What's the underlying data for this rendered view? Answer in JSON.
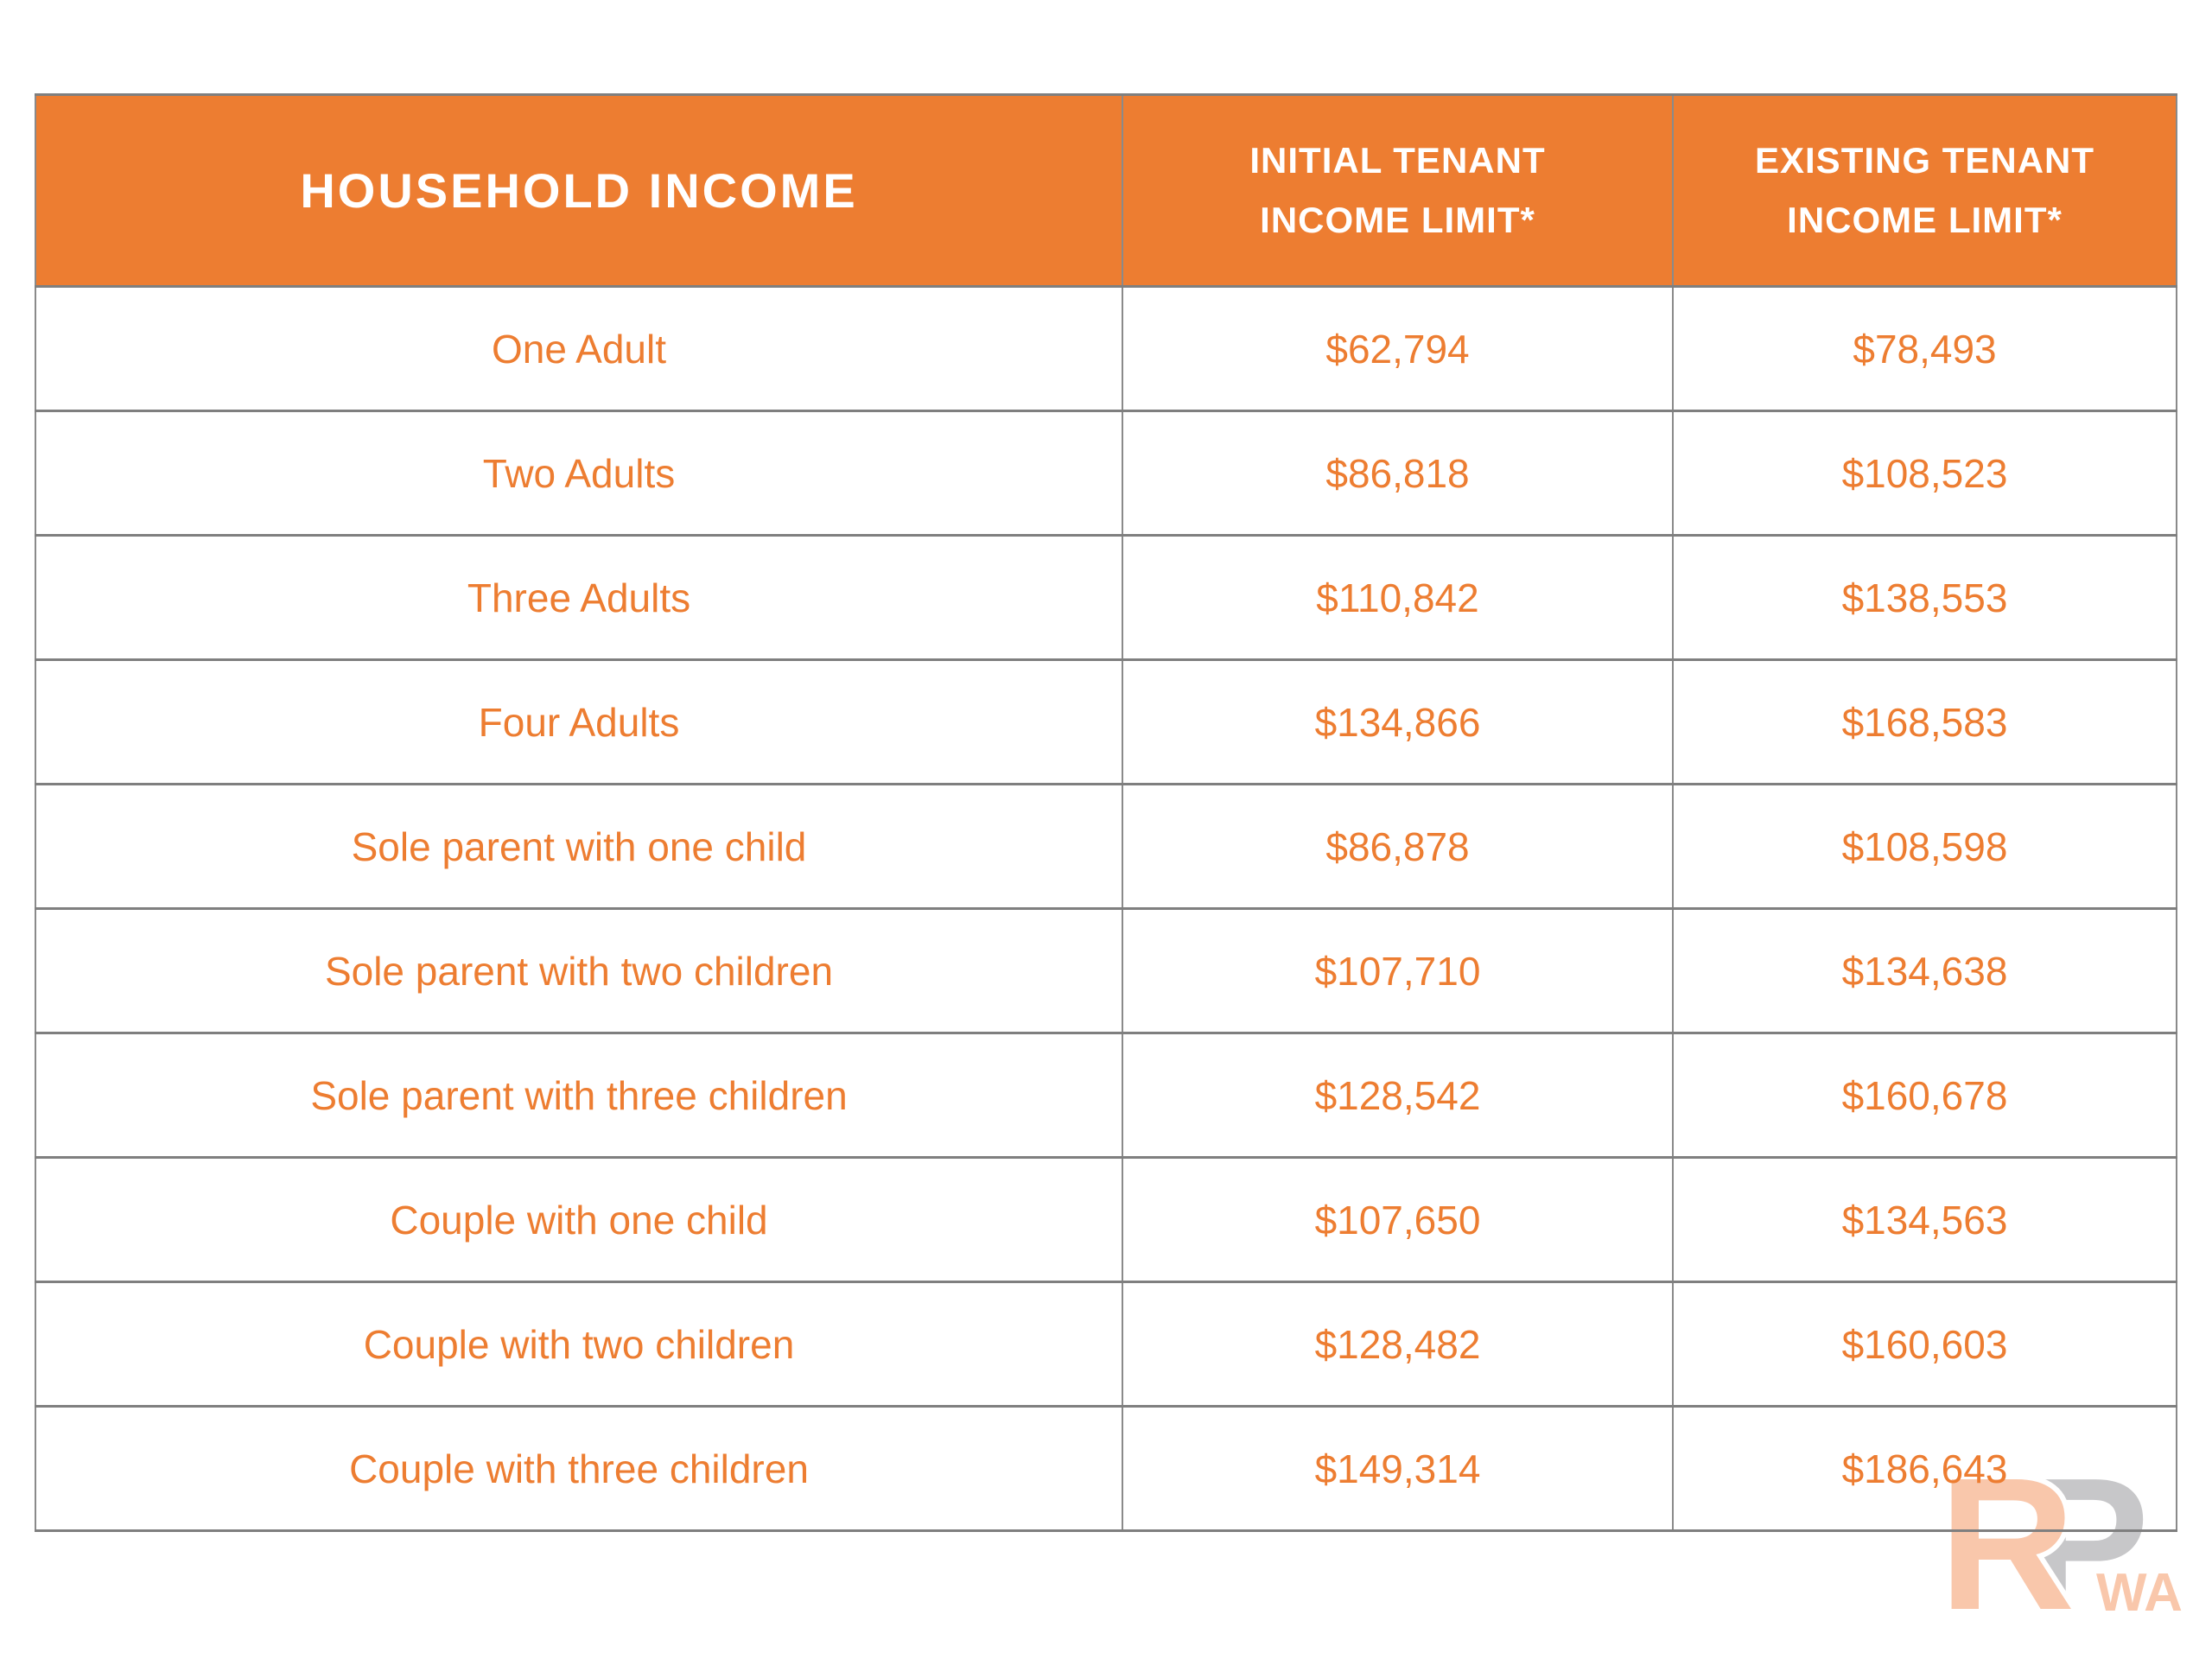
{
  "page": {
    "background": "#ffffff"
  },
  "colors": {
    "accent_orange": "#ED7D31",
    "header_text": "#FFFFFF",
    "border_gray": "#8A8A8A",
    "watermark_peach": "#F9C7AB",
    "watermark_gray": "#C7C7C9"
  },
  "table": {
    "header": {
      "household": "HOUSEHOLD INCOME",
      "initial_line1": "INITIAL TENANT",
      "initial_line2": "INCOME LIMIT*",
      "existing_line1": "EXISTING TENANT",
      "existing_line2": "INCOME LIMIT*"
    },
    "rows": [
      {
        "label": "One Adult",
        "initial": "$62,794",
        "existing": "$78,493"
      },
      {
        "label": "Two Adults",
        "initial": "$86,818",
        "existing": "$108,523"
      },
      {
        "label": "Three Adults",
        "initial": "$110,842",
        "existing": "$138,553"
      },
      {
        "label": "Four Adults",
        "initial": "$134,866",
        "existing": "$168,583"
      },
      {
        "label": "Sole parent with one child",
        "initial": "$86,878",
        "existing": "$108,598"
      },
      {
        "label": "Sole parent with two children",
        "initial": "$107,710",
        "existing": "$134,638"
      },
      {
        "label": "Sole parent with three children",
        "initial": "$128,542",
        "existing": "$160,678"
      },
      {
        "label": "Couple with one child",
        "initial": "$107,650",
        "existing": "$134,563"
      },
      {
        "label": "Couple with two children",
        "initial": "$128,482",
        "existing": "$160,603"
      },
      {
        "label": "Couple with three children",
        "initial": "$149,314",
        "existing": "$186,643"
      }
    ]
  },
  "watermark": {
    "r": "R",
    "p": "P",
    "wa": "WA"
  },
  "chart_data": {
    "type": "table",
    "columns": [
      "HOUSEHOLD INCOME",
      "INITIAL TENANT INCOME LIMIT*",
      "EXISTING TENANT INCOME LIMIT*"
    ],
    "rows": [
      [
        "One Adult",
        "$62,794",
        "$78,493"
      ],
      [
        "Two Adults",
        "$86,818",
        "$108,523"
      ],
      [
        "Three Adults",
        "$110,842",
        "$138,553"
      ],
      [
        "Four Adults",
        "$134,866",
        "$168,583"
      ],
      [
        "Sole parent with one child",
        "$86,878",
        "$108,598"
      ],
      [
        "Sole parent with two children",
        "$107,710",
        "$134,638"
      ],
      [
        "Sole parent with three children",
        "$128,542",
        "$160,678"
      ],
      [
        "Couple with one child",
        "$107,650",
        "$134,563"
      ],
      [
        "Couple with two children",
        "$128,482",
        "$160,603"
      ],
      [
        "Couple with three children",
        "$149,314",
        "$186,643"
      ]
    ]
  }
}
